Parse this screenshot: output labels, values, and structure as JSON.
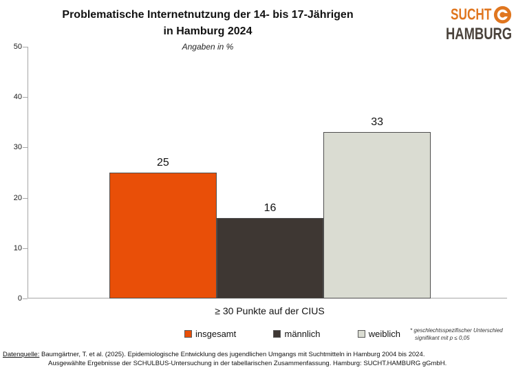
{
  "header": {
    "title_line1": "Problematische Internetnutzung der 14- bis 17-Jährigen",
    "title_line2": "in Hamburg 2024",
    "subtitle": "Angaben in %"
  },
  "logo": {
    "line1": "SUCHT",
    "line2": "HAMBURG",
    "orange": "#E0761F",
    "dark": "#4A423B"
  },
  "chart_data": {
    "type": "bar",
    "title": "Problematische Internetnutzung der 14- bis 17-Jährigen in Hamburg 2024",
    "subtitle": "Angaben in %",
    "categories": [
      "insgesamt",
      "männlich",
      "weiblich"
    ],
    "values": [
      25,
      16,
      33
    ],
    "colors": [
      "#E94F08",
      "#3E3733",
      "#DADCD2"
    ],
    "group_label": "≥ 30 Punkte auf der CIUS",
    "xlabel": "",
    "ylabel": "",
    "ylim": [
      0,
      50
    ],
    "yticks": [
      0,
      10,
      20,
      30,
      40,
      50
    ],
    "grid": false,
    "legend_position": "bottom"
  },
  "legend": {
    "items": [
      {
        "label": "insgesamt",
        "color": "#E94F08"
      },
      {
        "label": "männlich",
        "color": "#3E3733"
      },
      {
        "label": "weiblich",
        "color": "#DADCD2"
      }
    ]
  },
  "footnote": {
    "line1": "* geschlechtsspezifischer Unterschied",
    "line2": "signifikant mit p ≤ 0,05"
  },
  "source": {
    "label": "Datenquelle:",
    "line1": "Baumgärtner, T. et al. (2025). Epidemiologische Entwicklung des jugendlichen Umgangs mit Suchtmitteln in Hamburg 2004 bis 2024.",
    "line2": "Ausgewählte Ergebnisse der SCHULBUS-Untersuchung in der tabellarischen Zusammenfassung. Hamburg: SUCHT.HAMBURG gGmbH."
  }
}
